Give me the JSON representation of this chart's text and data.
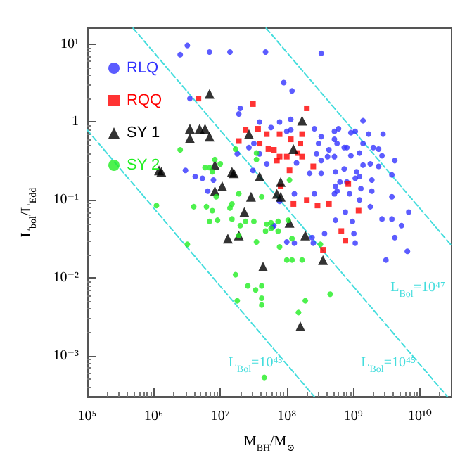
{
  "chart_data": {
    "type": "scatter",
    "xlabel": "M$_{BH}$/M$_{⊙}$",
    "ylabel": "L$_{bol}$/L$_{Edd}$",
    "log": "xy",
    "grid": false,
    "legend": "top left",
    "xlim": [
      100000,
      30000000000
    ],
    "ylim": [
      0.0003,
      16
    ],
    "xticks": [
      {
        "value": 100000,
        "label": "10⁵"
      },
      {
        "value": 1000000,
        "label": "10⁶"
      },
      {
        "value": 10000000,
        "label": "10⁷"
      },
      {
        "value": 100000000,
        "label": "10⁸"
      },
      {
        "value": 1000000000,
        "label": "10⁹"
      },
      {
        "value": 10000000000,
        "label": "10¹⁰"
      }
    ],
    "yticks": [
      {
        "value": 0.001,
        "label": "10⁻³"
      },
      {
        "value": 0.01,
        "label": "10⁻²"
      },
      {
        "value": 0.1,
        "label": "10⁻¹"
      },
      1,
      {
        "value": 10,
        "label": "10¹"
      }
    ],
    "annotations": [
      "L$_{Bol}$=10⁴³",
      "L$_{Bol}$=10⁴⁵",
      "L$_{Bol}$=10⁴⁷"
    ],
    "series": [
      {
        "name": "RLQ",
        "color": "#3333ff",
        "marker": "circle",
        "x": [
          3200000.0,
          2500000.0,
          6900000.0,
          14000000.0,
          3500000.0,
          3000000.0,
          4200000.0,
          5400000.0,
          7900000.0,
          6500000.0,
          330000000.0,
          48000000.0,
          90000000.0,
          120000000.0,
          20000000.0,
          19000000.0,
          39000000.0,
          58000000.0,
          78000000.0,
          115000000.0,
          115000000.0,
          100000000.0,
          260000000.0,
          330000000.0,
          520000000.0,
          600000000.0,
          920000000.0,
          1070000000.0,
          1400000000.0,
          1700000000.0,
          2800000000.0,
          300000000.0,
          520000000.0,
          570000000.0,
          800000000.0,
          1400000000.0,
          2400000000.0,
          430000000.0,
          410000000.0,
          280000000.0,
          330000000.0,
          520000000.0,
          730000000.0,
          920000000.0,
          1240000000.0,
          2700000000.0,
          2000000000.0,
          27000000.0,
          32000000.0,
          18000000.0,
          31000000.0,
          50000000.0,
          140000000.0,
          220000000.0,
          330000000.0,
          540000000.0,
          730000000.0,
          1400000000.0,
          1800000000.0,
          2400000000.0,
          4200000000.0,
          3800000000.0,
          1120000000.0,
          1070000000.0,
          1240000000.0,
          630000000.0,
          540000000.0,
          570000000.0,
          800000000.0,
          880000000.0,
          520000000.0,
          1300000000.0,
          1900000000.0,
          1900000000.0,
          3800000000.0,
          1240000000.0,
          1800000000.0,
          760000000.0,
          970000000.0,
          540000000.0,
          3800000000.0,
          5300000000.0,
          6800000000.0,
          130000000.0,
          260000000.0,
          78000000.0,
          64000000.0,
          39000000.0,
          61000000.0,
          100000000.0,
          130000000.0,
          240000000.0,
          250000000.0,
          370000000.0,
          1020000000.0,
          1070000000.0,
          2700000000.0,
          4200000000.0,
          6500000000.0,
          3100000000.0
        ],
        "values": [
          9.6,
          7.3,
          7.9,
          7.9,
          2.0,
          0.24,
          0.2,
          0.19,
          0.18,
          0.13,
          7.6,
          7.9,
          3.2,
          2.5,
          1.5,
          1.27,
          1.0,
          0.85,
          1.0,
          1.08,
          0.79,
          0.76,
          0.82,
          0.65,
          0.76,
          0.82,
          0.73,
          0.76,
          1.04,
          0.7,
          0.7,
          0.53,
          0.6,
          0.53,
          0.47,
          0.53,
          0.45,
          0.44,
          0.36,
          0.39,
          0.32,
          0.36,
          0.47,
          0.37,
          0.4,
          0.37,
          0.47,
          0.47,
          0.53,
          0.39,
          0.24,
          0.29,
          0.3,
          0.22,
          0.22,
          0.23,
          0.25,
          0.28,
          0.29,
          0.27,
          0.32,
          0.21,
          0.23,
          0.19,
          0.2,
          0.17,
          0.15,
          0.13,
          0.17,
          0.12,
          0.12,
          0.14,
          0.18,
          0.13,
          0.11,
          0.1,
          0.082,
          0.07,
          0.053,
          0.055,
          0.057,
          0.047,
          0.07,
          0.12,
          0.12,
          0.096,
          0.047,
          0.39,
          0.045,
          0.029,
          0.028,
          0.033,
          0.028,
          0.037,
          0.037,
          0.028,
          0.057,
          0.033,
          0.022,
          0.017
        ]
      },
      {
        "name": "RQQ",
        "color": "#ff0000",
        "marker": "square",
        "x": [
          4700000.0,
          31000000.0,
          200000000.0,
          37000000.0,
          24000000.0,
          19000000.0,
          39000000.0,
          50000000.0,
          78000000.0,
          115000000.0,
          170000000.0,
          160000000.0,
          53000000.0,
          64000000.0,
          100000000.0,
          78000000.0,
          71000000.0,
          145000000.0,
          170000000.0,
          110000000.0,
          250000000.0,
          81000000.0,
          200000000.0,
          126000000.0,
          290000000.0,
          430000000.0,
          1200000000.0,
          840000000.0,
          660000000.0,
          760000000.0,
          350000000.0
        ],
        "values": [
          2.0,
          1.7,
          1.5,
          0.82,
          0.79,
          0.57,
          0.53,
          0.7,
          0.7,
          0.6,
          0.7,
          0.53,
          0.45,
          0.44,
          0.36,
          0.36,
          0.32,
          0.4,
          0.36,
          0.24,
          0.27,
          0.15,
          0.1,
          0.089,
          0.085,
          0.089,
          0.073,
          0.16,
          0.04,
          0.03,
          0.023
        ]
      },
      {
        "name": "SY 1",
        "color": "#000000",
        "marker": "triangle",
        "x": [
          6900000.0,
          3500000.0,
          4900000.0,
          5900000.0,
          6900000.0,
          3500000.0,
          1200000.0,
          1300000.0,
          8300000.0,
          8300000.0,
          10700000.0,
          15000000.0,
          27000000.0,
          170000000.0,
          126000000.0,
          16000000.0,
          39000000.0,
          81000000.0,
          71000000.0,
          29000000.0,
          81000000.0,
          23000000.0,
          110000000.0,
          13000000.0,
          19000000.0,
          190000000.0,
          350000000.0,
          44000000.0,
          160000000.0
        ],
        "values": [
          2.3,
          0.82,
          0.82,
          0.82,
          0.65,
          0.62,
          0.24,
          0.23,
          0.28,
          0.13,
          0.15,
          0.23,
          0.7,
          1.04,
          0.45,
          0.22,
          0.2,
          0.17,
          0.12,
          0.11,
          0.11,
          0.07,
          0.051,
          0.032,
          0.035,
          0.035,
          0.017,
          0.014,
          0.0024
        ]
      },
      {
        "name": "SY 2",
        "color": "#22ee22",
        "marker": "circle",
        "x": [
          2500000.0,
          8300000.0,
          6900000.0,
          5900000.0,
          10000000.0,
          7600000.0,
          8700000.0,
          1100000.0,
          4000000.0,
          6200000.0,
          7600000.0,
          14000000.0,
          15000000.0,
          6900000.0,
          9100000.0,
          15000000.0,
          17000000.0,
          35000000.0,
          35000000.0,
          110000000.0,
          19000000.0,
          42000000.0,
          24000000.0,
          32000000.0,
          50000000.0,
          58000000.0,
          74000000.0,
          105000000.0,
          20000000.0,
          48000000.0,
          58000000.0,
          74000000.0,
          19000000.0,
          35000000.0,
          78000000.0,
          120000000.0,
          320000000.0,
          100000000.0,
          120000000.0,
          170000000.0,
          17000000.0,
          26000000.0,
          34000000.0,
          42000000.0,
          42000000.0,
          42000000.0,
          18000000.0,
          190000000.0,
          450000000.0,
          150000000.0,
          46000000.0,
          3200000.0
        ],
        "values": [
          0.44,
          0.33,
          0.26,
          0.26,
          0.29,
          0.23,
          0.11,
          0.085,
          0.082,
          0.082,
          0.073,
          0.079,
          0.089,
          0.053,
          0.055,
          0.057,
          0.45,
          0.4,
          0.33,
          0.18,
          0.12,
          0.11,
          0.053,
          0.053,
          0.049,
          0.051,
          0.053,
          0.055,
          0.047,
          0.04,
          0.043,
          0.04,
          0.035,
          0.029,
          0.025,
          0.032,
          0.027,
          0.017,
          0.017,
          0.017,
          0.011,
          0.0079,
          0.007,
          0.0079,
          0.0055,
          0.0045,
          0.0051,
          0.0051,
          0.0062,
          0.0036,
          0.00053,
          0.027
        ]
      },
      {
        "type": "line",
        "color": "#44dddd",
        "line_style": "dashed",
        "marker": "none",
        "x": [
          100000,
          260000000
        ],
        "values": [
          0.79,
          0.0003
        ]
      },
      {
        "type": "line",
        "color": "#44dddd",
        "line_style": "dashed",
        "marker": "none",
        "x": [
          490000,
          26000000000
        ],
        "values": [
          16,
          0.0003
        ]
      },
      {
        "type": "line",
        "color": "#44dddd",
        "line_style": "dashed",
        "marker": "none",
        "x": [
          49000000,
          30000000000
        ],
        "values": [
          16,
          0.026
        ]
      }
    ]
  }
}
